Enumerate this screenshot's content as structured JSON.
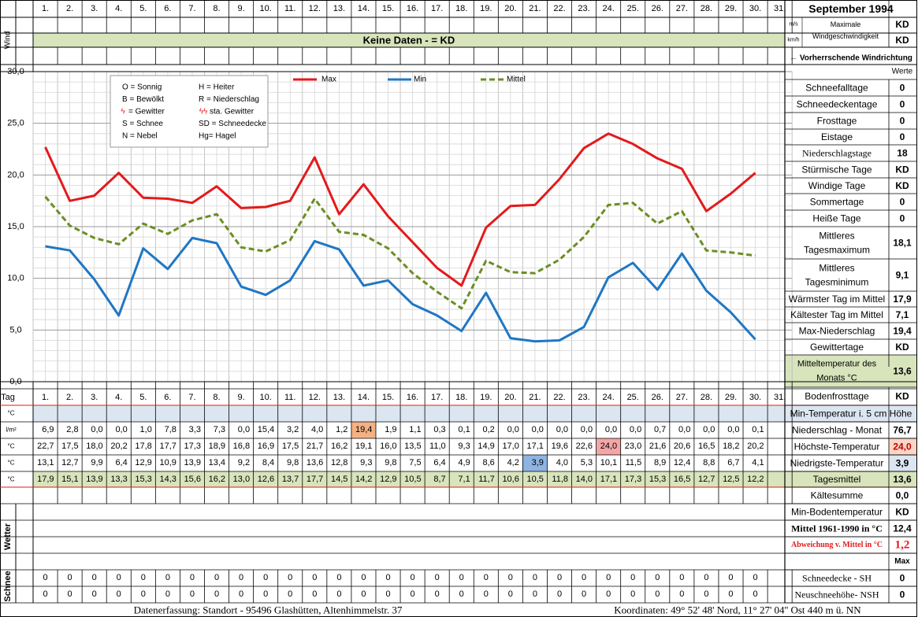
{
  "header": {
    "title": "September 1994",
    "days": [
      "1.",
      "2.",
      "3.",
      "4.",
      "5.",
      "6.",
      "7.",
      "8.",
      "9.",
      "10.",
      "11.",
      "12.",
      "13.",
      "14.",
      "15.",
      "16.",
      "17.",
      "18.",
      "19.",
      "20.",
      "21.",
      "22.",
      "23.",
      "24.",
      "25.",
      "26.",
      "27.",
      "28.",
      "29.",
      "30.",
      "31."
    ],
    "wind_label": "Wind",
    "wind_units": [
      "m/s",
      "km/h"
    ],
    "no_data_banner": "Keine Daten -  = KD",
    "max_wind_label_1": "Maximale",
    "max_wind_label_2": "Windgeschwindigkeit",
    "max_wind_values": [
      "KD",
      "KD"
    ],
    "prevailing_wind": "← Vorherrschende Windrichtung"
  },
  "stats": {
    "werte_header": "Werte",
    "rows": [
      {
        "label": "Schneefalltage",
        "value": "0"
      },
      {
        "label": "Schneedeckentage",
        "value": "0"
      },
      {
        "label": "Frosttage",
        "value": "0"
      },
      {
        "label": "Eistage",
        "value": "0"
      },
      {
        "label": "Niederschlagstage",
        "value": "18"
      },
      {
        "label": "Stürmische Tage",
        "value": "KD"
      },
      {
        "label": "Windige Tage",
        "value": "KD"
      },
      {
        "label": "Sommertage",
        "value": "0"
      },
      {
        "label": "Heiße Tage",
        "value": "0"
      },
      {
        "label": "Mittleres Tagesmaximum",
        "value": "18,1"
      },
      {
        "label": "Mittleres Tagesminimum",
        "value": "9,1"
      },
      {
        "label": "Wärmster Tag im Mittel",
        "value": "17,9"
      },
      {
        "label": "Kältester Tag im Mittel",
        "value": "7,1"
      },
      {
        "label": "Max-Niederschlag",
        "value": "19,4"
      },
      {
        "label": "Gewittertage",
        "value": "KD"
      },
      {
        "label": "Mitteltemperatur des Monats °C",
        "value": "13,6"
      },
      {
        "label": "Bodenfrosttage",
        "value": "KD"
      },
      {
        "label": "Min-Temperatur i. 5 cm Höhe",
        "value": ""
      },
      {
        "label": "Niederschlag - Monat",
        "value": "76,7"
      },
      {
        "label": "Höchste-Temperatur",
        "value": "24,0"
      },
      {
        "label": "Niedrigste-Temperatur",
        "value": "3,9"
      },
      {
        "label": "Tagesmittel",
        "value": "13,6"
      },
      {
        "label": "Kältesumme",
        "value": "0,0"
      },
      {
        "label": "Min-Bodentemperatur",
        "value": "KD"
      },
      {
        "label": "Mittel 1961-1990 in °C",
        "value": "12,4"
      },
      {
        "label": "Abweichung v. Mittel in °C",
        "value": "1,2"
      },
      {
        "label": "",
        "value": "Max"
      },
      {
        "label": "Schneedecke -   SH",
        "value": "0"
      },
      {
        "label": "Neuschneehöhe- NSH",
        "value": "0"
      }
    ]
  },
  "legend": {
    "symbols": [
      [
        "O = Sonnig",
        "H = Heiter"
      ],
      [
        "B = Bewölkt",
        "R = Niederschlag"
      ],
      [
        "= Gewitter",
        "sta. Gewitter"
      ],
      [
        "S = Schnee",
        "SD = Schneedecke"
      ],
      [
        "N = Nebel",
        "Hg= Hagel"
      ]
    ],
    "storm_glyphs": [
      "ϟ",
      "ϟϟ"
    ]
  },
  "table": {
    "tag_label": "Tag",
    "row_units": [
      "°C",
      "l/m²",
      "°C",
      "°C",
      "°C"
    ],
    "precip": [
      "6,9",
      "2,8",
      "0,0",
      "0,0",
      "1,0",
      "7,8",
      "3,3",
      "7,3",
      "0,0",
      "15,4",
      "3,2",
      "4,0",
      "1,2",
      "19,4",
      "1,9",
      "1,1",
      "0,3",
      "0,1",
      "0,2",
      "0,0",
      "0,0",
      "0,0",
      "0,0",
      "0,0",
      "0,0",
      "0,7",
      "0,0",
      "0,0",
      "0,0",
      "0,1"
    ],
    "max": [
      "22,7",
      "17,5",
      "18,0",
      "20,2",
      "17,8",
      "17,7",
      "17,3",
      "18,9",
      "16,8",
      "16,9",
      "17,5",
      "21,7",
      "16,2",
      "19,1",
      "16,0",
      "13,5",
      "11,0",
      "9,3",
      "14,9",
      "17,0",
      "17,1",
      "19,6",
      "22,6",
      "24,0",
      "23,0",
      "21,6",
      "20,6",
      "16,5",
      "18,2",
      "20,2"
    ],
    "min": [
      "13,1",
      "12,7",
      "9,9",
      "6,4",
      "12,9",
      "10,9",
      "13,9",
      "13,4",
      "9,2",
      "8,4",
      "9,8",
      "13,6",
      "12,8",
      "9,3",
      "9,8",
      "7,5",
      "6,4",
      "4,9",
      "8,6",
      "4,2",
      "3,9",
      "4,0",
      "5,3",
      "10,1",
      "11,5",
      "8,9",
      "12,4",
      "8,8",
      "6,7",
      "4,1"
    ],
    "mean": [
      "17,9",
      "15,1",
      "13,9",
      "13,3",
      "15,3",
      "14,3",
      "15,6",
      "16,2",
      "13,0",
      "12,6",
      "13,7",
      "17,7",
      "14,5",
      "14,2",
      "12,9",
      "10,5",
      "8,7",
      "7,1",
      "11,7",
      "10,6",
      "10,5",
      "11,8",
      "14,0",
      "17,1",
      "17,3",
      "15,3",
      "16,5",
      "12,7",
      "12,5",
      "12,2"
    ],
    "wetter_label": "Wetter",
    "schnee_label": "Schnee",
    "snow_sh": [
      "0",
      "0",
      "0",
      "0",
      "0",
      "0",
      "0",
      "0",
      "0",
      "0",
      "0",
      "0",
      "0",
      "0",
      "0",
      "0",
      "0",
      "0",
      "0",
      "0",
      "0",
      "0",
      "0",
      "0",
      "0",
      "0",
      "0",
      "0",
      "0",
      "0"
    ],
    "snow_nsh": [
      "0",
      "0",
      "0",
      "0",
      "0",
      "0",
      "0",
      "0",
      "0",
      "0",
      "0",
      "0",
      "0",
      "0",
      "0",
      "0",
      "0",
      "0",
      "0",
      "0",
      "0",
      "0",
      "0",
      "0",
      "0",
      "0",
      "0",
      "0",
      "0",
      "0"
    ]
  },
  "footer": {
    "left": "Datenerfassung:  Standort -   95496  Glashütten, Altenhimmelstr. 37",
    "right": "Koordinaten:  49° 52' 48' Nord,  11° 27' 04'' Ost   440 m ü. NN"
  },
  "colors": {
    "max": "#e31a1c",
    "min": "#1f77c4",
    "mean": "#6b8e23",
    "banner": "#d8e4bc",
    "row_blue": "#dce6f1",
    "row_green": "#d8e4bc",
    "hl_orange": "#f4b183",
    "hl_red": "#f4a6a6",
    "hl_blue": "#8db4e2",
    "grid": "#b7b7b7"
  },
  "chart_data": {
    "type": "line",
    "x": [
      1,
      2,
      3,
      4,
      5,
      6,
      7,
      8,
      9,
      10,
      11,
      12,
      13,
      14,
      15,
      16,
      17,
      18,
      19,
      20,
      21,
      22,
      23,
      24,
      25,
      26,
      27,
      28,
      29,
      30
    ],
    "series": [
      {
        "name": "Max",
        "values": [
          22.7,
          17.5,
          18.0,
          20.2,
          17.8,
          17.7,
          17.3,
          18.9,
          16.8,
          16.9,
          17.5,
          21.7,
          16.2,
          19.1,
          16.0,
          13.5,
          11.0,
          9.3,
          14.9,
          17.0,
          17.1,
          19.6,
          22.6,
          24.0,
          23.0,
          21.6,
          20.6,
          16.5,
          18.2,
          20.2
        ]
      },
      {
        "name": "Min",
        "values": [
          13.1,
          12.7,
          9.9,
          6.4,
          12.9,
          10.9,
          13.9,
          13.4,
          9.2,
          8.4,
          9.8,
          13.6,
          12.8,
          9.3,
          9.8,
          7.5,
          6.4,
          4.9,
          8.6,
          4.2,
          3.9,
          4.0,
          5.3,
          10.1,
          11.5,
          8.9,
          12.4,
          8.8,
          6.7,
          4.1
        ]
      },
      {
        "name": "Mittel",
        "values": [
          17.9,
          15.1,
          13.9,
          13.3,
          15.3,
          14.3,
          15.6,
          16.2,
          13.0,
          12.6,
          13.7,
          17.7,
          14.5,
          14.2,
          12.9,
          10.5,
          8.7,
          7.1,
          11.7,
          10.6,
          10.5,
          11.8,
          14.0,
          17.1,
          17.3,
          15.3,
          16.5,
          12.7,
          12.5,
          12.2
        ]
      }
    ],
    "yticks": [
      "0,0",
      "5,0",
      "10,0",
      "15,0",
      "20,0",
      "25,0",
      "30,0"
    ],
    "ylim": [
      0,
      30
    ],
    "grid": true,
    "legend_position": "top"
  }
}
